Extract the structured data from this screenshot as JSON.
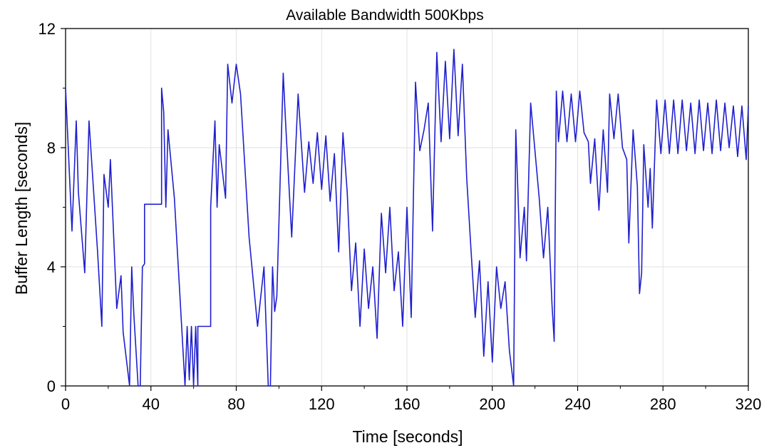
{
  "chart_data": {
    "type": "line",
    "title": "Available Bandwidth 500Kbps",
    "xlabel": "Time [seconds]",
    "ylabel": "Buffer Length [seconds]",
    "xlim": [
      0,
      320
    ],
    "ylim": [
      0,
      12
    ],
    "xticks": [
      0,
      40,
      80,
      120,
      160,
      200,
      240,
      280,
      320
    ],
    "yticks": [
      0,
      4,
      8,
      12
    ],
    "grid": true,
    "line_color": "#1f1fcf",
    "series": [
      {
        "x": [
          0,
          3,
          5,
          6,
          9,
          11,
          12,
          15,
          17,
          18,
          20,
          21,
          24,
          26,
          27,
          30,
          31,
          32,
          34,
          35,
          36,
          37,
          37,
          45,
          45,
          46,
          47,
          48,
          51,
          56,
          57,
          58,
          59,
          60,
          61,
          62,
          62,
          68,
          68,
          70,
          71,
          72,
          75,
          76,
          78,
          80,
          82,
          86,
          90,
          93,
          95,
          96,
          97,
          98,
          99,
          102,
          103,
          106,
          109,
          112,
          114,
          116,
          118,
          120,
          122,
          124,
          126,
          128,
          130,
          132,
          134,
          136,
          138,
          140,
          142,
          144,
          146,
          148,
          150,
          152,
          154,
          156,
          158,
          160,
          162,
          164,
          166,
          168,
          170,
          172,
          174,
          176,
          178,
          180,
          182,
          184,
          186,
          188,
          190,
          192,
          194,
          196,
          198,
          200,
          202,
          204,
          206,
          208,
          210,
          211,
          212,
          213,
          215,
          216,
          218,
          220,
          222,
          224,
          226,
          228,
          229,
          230,
          231,
          233,
          235,
          237,
          239,
          241,
          243,
          245,
          246,
          248,
          250,
          252,
          254,
          255,
          257,
          259,
          261,
          263,
          264,
          266,
          268,
          269,
          270,
          271,
          273,
          274,
          275,
          277,
          279,
          281,
          283,
          285,
          287,
          289,
          291,
          293,
          295,
          297,
          299,
          301,
          303,
          305,
          307,
          309,
          311,
          313,
          315,
          317,
          319,
          320
        ],
        "y": [
          10,
          5.2,
          8.9,
          6.5,
          3.8,
          8.9,
          7.8,
          4.5,
          2.0,
          7.1,
          6.0,
          7.6,
          2.6,
          3.7,
          1.8,
          0.0,
          4.0,
          2.4,
          0.0,
          0.0,
          4.0,
          4.1,
          6.1,
          6.1,
          10.0,
          9.2,
          6.0,
          8.6,
          6.3,
          0.0,
          2.0,
          0.2,
          2.0,
          0.0,
          2.0,
          0.0,
          2.0,
          2.0,
          6.0,
          8.9,
          6.0,
          8.1,
          6.3,
          10.8,
          9.5,
          10.8,
          9.8,
          5.0,
          2.0,
          4.0,
          0.0,
          0.0,
          4.0,
          2.5,
          3.0,
          10.5,
          9.0,
          5.0,
          9.8,
          6.5,
          8.2,
          6.8,
          8.5,
          6.6,
          8.4,
          6.2,
          7.8,
          4.5,
          8.5,
          6.5,
          3.2,
          4.8,
          2.0,
          4.6,
          2.6,
          4.0,
          1.6,
          5.8,
          3.8,
          6.0,
          3.2,
          4.5,
          2.0,
          6.0,
          2.3,
          10.2,
          7.9,
          8.6,
          9.5,
          5.2,
          11.2,
          8.2,
          10.9,
          8.3,
          11.3,
          8.4,
          10.8,
          7.0,
          4.6,
          2.3,
          4.2,
          1.0,
          3.5,
          0.8,
          4.0,
          2.6,
          3.5,
          1.2,
          0.0,
          8.6,
          6.5,
          4.3,
          6.0,
          4.2,
          9.5,
          7.9,
          6.3,
          4.3,
          6.0,
          2.7,
          1.5,
          9.9,
          8.2,
          9.9,
          8.2,
          9.8,
          8.2,
          9.9,
          8.5,
          8.2,
          6.8,
          8.3,
          5.9,
          8.6,
          6.5,
          9.8,
          8.3,
          9.8,
          8.0,
          7.6,
          4.8,
          8.6,
          6.7,
          3.1,
          3.8,
          8.1,
          6.0,
          7.3,
          5.3,
          9.6,
          7.8,
          9.6,
          7.8,
          9.6,
          7.8,
          9.6,
          7.9,
          9.5,
          7.8,
          9.6,
          7.9,
          9.5,
          7.8,
          9.6,
          7.9,
          9.5,
          8.0,
          9.4,
          7.7,
          9.4,
          7.6,
          9.4
        ]
      }
    ]
  }
}
